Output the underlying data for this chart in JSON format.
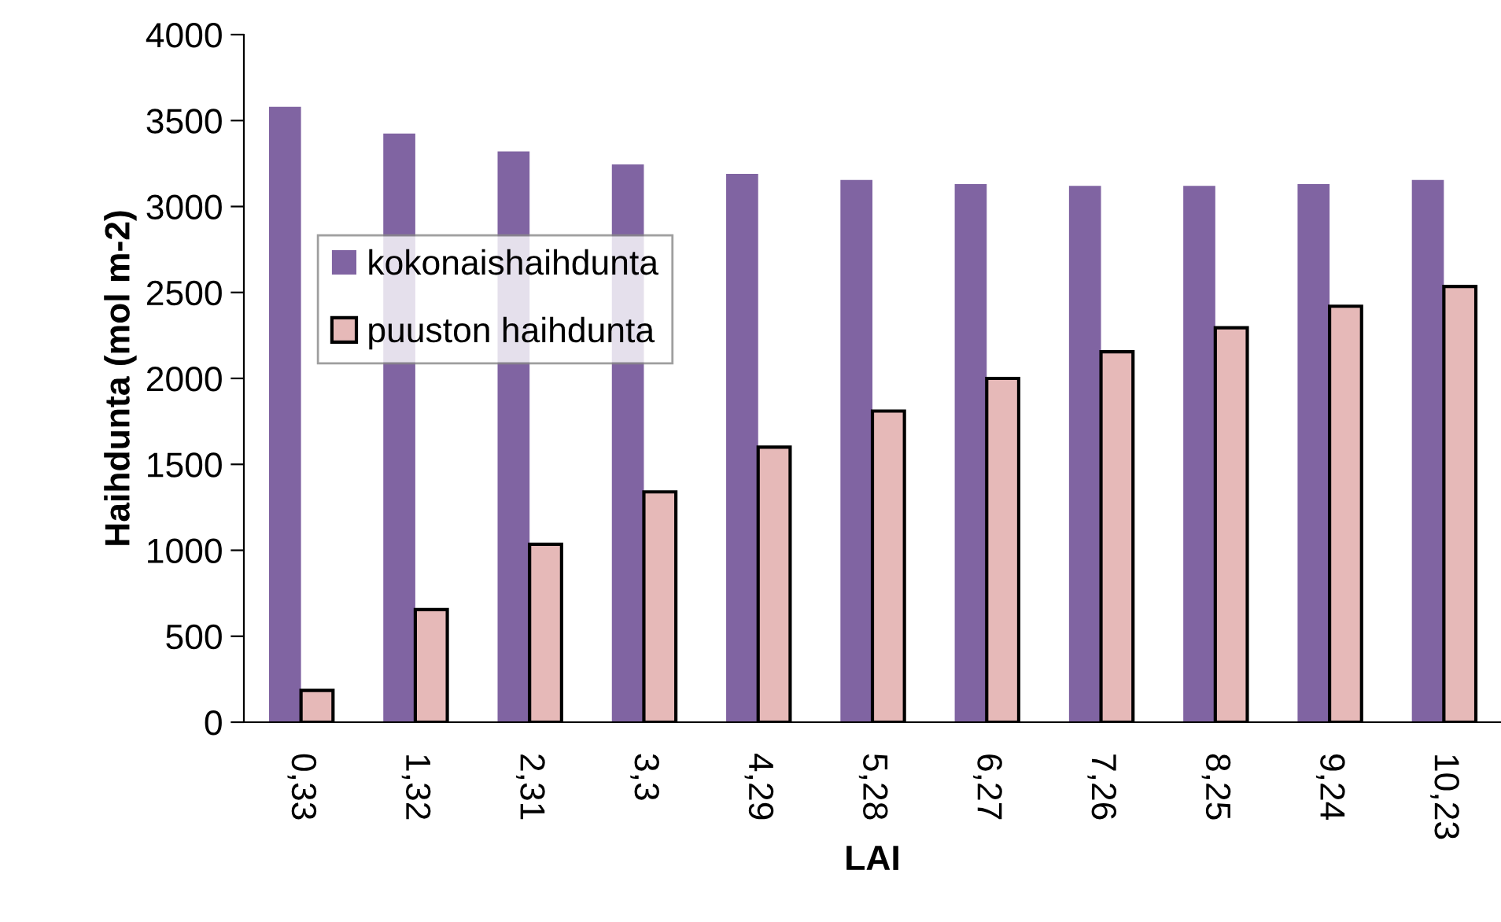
{
  "chart_data": {
    "type": "bar",
    "xlabel": "LAI",
    "ylabel": "Haihdunta (mol m-2)",
    "categories": [
      "0,33",
      "1,32",
      "2,31",
      "3,3",
      "4,29",
      "5,28",
      "6,27",
      "7,26",
      "8,25",
      "9,24",
      "10,23"
    ],
    "series": [
      {
        "name": "kokonaishaihdunta",
        "color": "#8064a2",
        "values": [
          3580,
          3425,
          3320,
          3245,
          3190,
          3155,
          3130,
          3120,
          3120,
          3130,
          3155
        ]
      },
      {
        "name": "puuston haihdunta",
        "color": "#e6b9b8",
        "values": [
          185,
          655,
          1035,
          1340,
          1600,
          1810,
          2000,
          2155,
          2295,
          2420,
          2535
        ]
      }
    ],
    "ylim": [
      0,
      4000
    ],
    "yticks": [
      0,
      500,
      1000,
      1500,
      2000,
      2500,
      3000,
      3500,
      4000
    ],
    "grid": false,
    "legend": "left"
  }
}
